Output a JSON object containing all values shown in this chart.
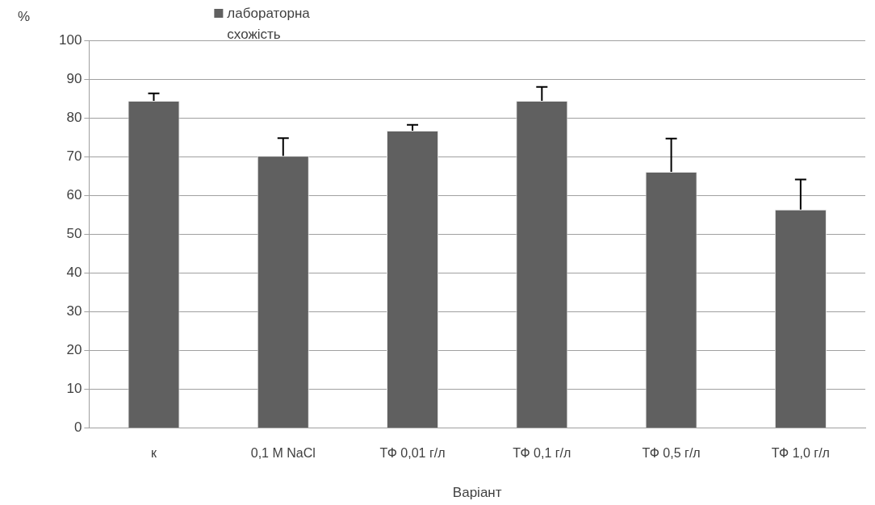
{
  "chart_data": {
    "type": "bar",
    "categories": [
      "к",
      "0,1 M NaCl",
      "ТФ 0,01 г/л",
      "ТФ 0,1 г/л",
      "ТФ 0,5 г/л",
      "ТФ 1,0 г/л"
    ],
    "series": [
      {
        "name": "лабораторна схожість",
        "color": "#606060",
        "values": [
          84.4,
          70.2,
          76.7,
          84.4,
          66.1,
          56.4
        ],
        "errors": [
          [
            84.4,
            86.3
          ],
          [
            70.2,
            74.8
          ],
          [
            76.7,
            78.2
          ],
          [
            84.4,
            88.0
          ],
          [
            66.1,
            74.7
          ],
          [
            56.4,
            64.1
          ]
        ]
      }
    ],
    "xlabel": "Варіант",
    "ylabel": "%",
    "ylim": [
      0,
      100
    ],
    "yticks": [
      0,
      10,
      20,
      30,
      40,
      50,
      60,
      70,
      80,
      90,
      100
    ],
    "grid": "y",
    "legend": "top left"
  }
}
